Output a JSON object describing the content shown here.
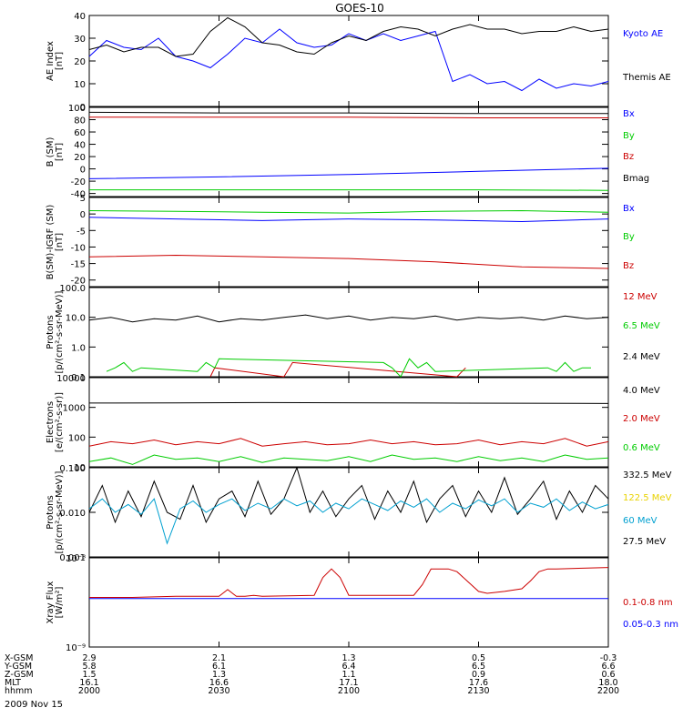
{
  "title": "GOES-10",
  "date": "2009 Nov 15",
  "colors": {
    "black": "#000000",
    "blue": "#0000ff",
    "red": "#cc0000",
    "green": "#00cc00",
    "yellow": "#e8d200",
    "cyan": "#00a0d0"
  },
  "chart_data": [
    {
      "type": "line",
      "ylabel": [
        "AE Index",
        "[nT]"
      ],
      "scale": "linear",
      "ylim": [
        0,
        40
      ],
      "ticks": [
        0,
        10,
        20,
        30,
        40
      ],
      "tick_labels": [
        "0",
        "10",
        "20",
        "30",
        "40"
      ],
      "xlim": [
        0,
        120
      ],
      "series": [
        {
          "name": "Kyoto AE",
          "color": "blue",
          "x": [
            0,
            4,
            8,
            12,
            16,
            20,
            24,
            28,
            32,
            36,
            40,
            44,
            48,
            52,
            56,
            60,
            64,
            68,
            72,
            76,
            80,
            84,
            88,
            92,
            96,
            100,
            104,
            108,
            112,
            116,
            120
          ],
          "values": [
            22,
            29,
            26,
            25,
            30,
            22,
            20,
            17,
            23,
            30,
            28,
            34,
            28,
            26,
            27,
            32,
            29,
            32,
            29,
            31,
            33,
            11,
            14,
            10,
            11,
            7,
            12,
            8,
            10,
            9,
            11
          ]
        },
        {
          "name": "Themis AE",
          "color": "black",
          "x": [
            0,
            4,
            8,
            12,
            16,
            20,
            24,
            28,
            32,
            36,
            40,
            44,
            48,
            52,
            56,
            60,
            64,
            68,
            72,
            76,
            80,
            84,
            88,
            92,
            96,
            100,
            104,
            108,
            112,
            116,
            120
          ],
          "values": [
            25,
            27,
            24,
            26,
            26,
            22,
            23,
            33,
            39,
            35,
            28,
            27,
            24,
            23,
            28,
            31,
            29,
            33,
            35,
            34,
            31,
            34,
            36,
            34,
            34,
            32,
            33,
            33,
            35,
            33,
            34
          ]
        }
      ]
    },
    {
      "type": "line",
      "ylabel": [
        "B (SM)",
        "[nT]"
      ],
      "scale": "linear",
      "ylim": [
        -45,
        100
      ],
      "ticks": [
        -40,
        -20,
        0,
        20,
        40,
        60,
        80,
        100
      ],
      "tick_labels": [
        "-40",
        "-20",
        "0",
        "20",
        "40",
        "60",
        "80",
        "100"
      ],
      "xlim": [
        0,
        120
      ],
      "series": [
        {
          "name": "Bx",
          "color": "blue",
          "x": [
            0,
            30,
            60,
            90,
            120
          ],
          "values": [
            -16,
            -13,
            -9,
            -4,
            1
          ]
        },
        {
          "name": "By",
          "color": "green",
          "x": [
            0,
            30,
            60,
            90,
            120
          ],
          "values": [
            -34,
            -34,
            -34,
            -34,
            -35
          ]
        },
        {
          "name": "Bz",
          "color": "red",
          "x": [
            0,
            30,
            60,
            90,
            120
          ],
          "values": [
            84,
            84,
            84,
            83,
            83
          ]
        },
        {
          "name": "Bmag",
          "color": "black",
          "x": [
            0,
            30,
            60,
            90,
            120
          ],
          "values": [
            92,
            91,
            91,
            90,
            90
          ]
        }
      ]
    },
    {
      "type": "line",
      "ylabel": [
        "B(SM)-IGRF (SM)",
        "[nT]"
      ],
      "scale": "linear",
      "ylim": [
        -22,
        5
      ],
      "ticks": [
        -20,
        -15,
        -10,
        -5,
        0,
        5
      ],
      "tick_labels": [
        "-20",
        "-15",
        "-10",
        "-5",
        "0",
        "5"
      ],
      "xlim": [
        0,
        120
      ],
      "series": [
        {
          "name": "Bx",
          "color": "blue",
          "x": [
            0,
            20,
            40,
            60,
            80,
            100,
            120
          ],
          "values": [
            -1,
            -1.5,
            -2,
            -1.5,
            -1.8,
            -2.3,
            -1.5
          ]
        },
        {
          "name": "By",
          "color": "green",
          "x": [
            0,
            20,
            40,
            60,
            80,
            100,
            120
          ],
          "values": [
            1,
            0.8,
            0.5,
            0.3,
            0.8,
            1,
            0.5
          ]
        },
        {
          "name": "Bz",
          "color": "red",
          "x": [
            0,
            20,
            40,
            60,
            80,
            100,
            120
          ],
          "values": [
            -13,
            -12.5,
            -13,
            -13.5,
            -14.5,
            -16,
            -16.5
          ]
        }
      ]
    },
    {
      "type": "line",
      "ylabel": [
        "Protons",
        "[p/(cm²-s-sr-MeV)]"
      ],
      "scale": "log",
      "ylim": [
        0.1,
        100
      ],
      "ticks": [
        0.1,
        1,
        10,
        100
      ],
      "tick_labels": [
        "0.1",
        "1.0",
        "10.0",
        "100.0"
      ],
      "xlim": [
        0,
        120
      ],
      "series": [
        {
          "name": "12 MeV",
          "color": "red",
          "x": [
            28,
            29,
            45,
            47,
            85,
            87
          ],
          "values": [
            0.1,
            0.2,
            0.1,
            0.3,
            0.1,
            0.2
          ]
        },
        {
          "name": "6.5 MeV",
          "color": "green",
          "x": [
            4,
            6,
            8,
            10,
            12,
            25,
            27,
            29,
            30,
            68,
            70,
            72,
            74,
            76,
            78,
            80,
            106,
            108,
            110,
            112,
            114,
            116
          ],
          "values": [
            0.15,
            0.2,
            0.3,
            0.15,
            0.2,
            0.15,
            0.3,
            0.2,
            0.4,
            0.3,
            0.2,
            0.1,
            0.4,
            0.2,
            0.3,
            0.15,
            0.2,
            0.15,
            0.3,
            0.15,
            0.2,
            0.2
          ]
        },
        {
          "name": "2.4 MeV",
          "color": "black",
          "x": [
            0,
            5,
            10,
            15,
            20,
            25,
            30,
            35,
            40,
            45,
            50,
            55,
            60,
            65,
            70,
            75,
            80,
            85,
            90,
            95,
            100,
            105,
            110,
            115,
            120
          ],
          "values": [
            8,
            10,
            7,
            9,
            8,
            11,
            7,
            9,
            8,
            10,
            12,
            9,
            11,
            8,
            10,
            9,
            11,
            8,
            10,
            9,
            10,
            8,
            11,
            9,
            10
          ]
        }
      ]
    },
    {
      "type": "line",
      "ylabel": [
        "Electrons",
        "[e/(cm²-s-sr)]"
      ],
      "scale": "log",
      "ylim": [
        10,
        10000
      ],
      "ticks": [
        10,
        100,
        1000,
        10000
      ],
      "tick_labels": [
        "10",
        "100",
        "1000",
        "10000"
      ],
      "xlim": [
        0,
        120
      ],
      "series": [
        {
          "name": "4.0 MeV",
          "color": "black",
          "x": [
            0,
            20,
            40,
            60,
            80,
            100,
            120
          ],
          "values": [
            1400,
            1420,
            1450,
            1430,
            1400,
            1380,
            1350
          ]
        },
        {
          "name": "2.0 MeV",
          "color": "red",
          "x": [
            0,
            5,
            10,
            15,
            20,
            25,
            30,
            35,
            40,
            45,
            50,
            55,
            60,
            65,
            70,
            75,
            80,
            85,
            90,
            95,
            100,
            105,
            110,
            115,
            120
          ],
          "values": [
            50,
            70,
            60,
            80,
            55,
            70,
            60,
            90,
            50,
            60,
            70,
            55,
            60,
            80,
            60,
            70,
            55,
            60,
            80,
            55,
            70,
            60,
            90,
            50,
            70
          ]
        },
        {
          "name": "0.6 MeV",
          "color": "green",
          "x": [
            0,
            5,
            10,
            15,
            20,
            25,
            30,
            35,
            40,
            45,
            50,
            55,
            60,
            65,
            70,
            75,
            80,
            85,
            90,
            95,
            100,
            105,
            110,
            115,
            120
          ],
          "values": [
            15,
            20,
            12,
            25,
            18,
            20,
            15,
            22,
            14,
            20,
            18,
            16,
            22,
            15,
            25,
            18,
            20,
            15,
            22,
            16,
            20,
            15,
            25,
            18,
            20
          ]
        }
      ]
    },
    {
      "type": "line",
      "ylabel": [
        "Protons",
        "[p/(cm²-s-sr-MeV)]"
      ],
      "scale": "log",
      "ylim": [
        0.001,
        0.1
      ],
      "ticks": [
        0.001,
        0.01,
        0.1
      ],
      "tick_labels": [
        "0.001",
        "0.010",
        "0.100"
      ],
      "xlim": [
        0,
        120
      ],
      "series": [
        {
          "name": "332.5 MeV",
          "color": "black",
          "x": [
            0,
            3,
            6,
            9,
            12,
            15,
            18,
            21,
            24,
            27,
            30,
            33,
            36,
            39,
            42,
            45,
            48,
            51,
            54,
            57,
            60,
            63,
            66,
            69,
            72,
            75,
            78,
            81,
            84,
            87,
            90,
            93,
            96,
            99,
            102,
            105,
            108,
            111,
            114,
            117,
            120
          ],
          "values": [
            0.01,
            0.04,
            0.006,
            0.03,
            0.008,
            0.05,
            0.01,
            0.007,
            0.04,
            0.006,
            0.02,
            0.03,
            0.008,
            0.05,
            0.009,
            0.02,
            0.1,
            0.01,
            0.03,
            0.008,
            0.02,
            0.04,
            0.007,
            0.03,
            0.01,
            0.05,
            0.006,
            0.02,
            0.04,
            0.008,
            0.03,
            0.01,
            0.06,
            0.009,
            0.02,
            0.05,
            0.007,
            0.03,
            0.01,
            0.04,
            0.02
          ]
        },
        {
          "name": "122.5 MeV",
          "color": "yellow",
          "x": [],
          "values": []
        },
        {
          "name": "60 MeV",
          "color": "cyan",
          "x": [
            0,
            3,
            6,
            9,
            12,
            15,
            18,
            21,
            24,
            27,
            30,
            33,
            36,
            39,
            42,
            45,
            48,
            51,
            54,
            57,
            60,
            63,
            66,
            69,
            72,
            75,
            78,
            81,
            84,
            87,
            90,
            93,
            96,
            99,
            102,
            105,
            108,
            111,
            114,
            117,
            120
          ],
          "values": [
            0.012,
            0.02,
            0.01,
            0.015,
            0.009,
            0.02,
            0.002,
            0.012,
            0.018,
            0.01,
            0.015,
            0.02,
            0.011,
            0.016,
            0.012,
            0.02,
            0.014,
            0.018,
            0.01,
            0.016,
            0.012,
            0.02,
            0.015,
            0.011,
            0.018,
            0.013,
            0.02,
            0.01,
            0.016,
            0.012,
            0.019,
            0.014,
            0.02,
            0.01,
            0.016,
            0.013,
            0.02,
            0.011,
            0.017,
            0.012,
            0.015
          ]
        },
        {
          "name": "27.5 MeV",
          "color": "black",
          "x": [],
          "values": []
        }
      ]
    },
    {
      "type": "line",
      "ylabel": [
        "Xray Flux",
        "[W/m²]"
      ],
      "scale": "log",
      "ylim": [
        1e-09,
        1e-08
      ],
      "ticks": [
        1e-09,
        1e-08
      ],
      "tick_labels": [
        "10⁻⁹",
        "10⁻⁸"
      ],
      "xlim": [
        0,
        120
      ],
      "series": [
        {
          "name": "0.1-0.8 nm",
          "color": "red",
          "x": [
            0,
            10,
            20,
            30,
            32,
            34,
            36,
            38,
            40,
            52,
            54,
            56,
            58,
            60,
            75,
            77,
            79,
            81,
            83,
            85,
            90,
            92,
            96,
            100,
            102,
            104,
            106,
            108,
            120
          ],
          "values": [
            3.6e-09,
            3.6e-09,
            3.7e-09,
            3.7e-09,
            4.4e-09,
            3.7e-09,
            3.7e-09,
            3.8e-09,
            3.7e-09,
            3.8e-09,
            6e-09,
            7.5e-09,
            6e-09,
            3.8e-09,
            3.8e-09,
            5e-09,
            7.5e-09,
            7.5e-09,
            7.5e-09,
            7e-09,
            4.2e-09,
            4e-09,
            4.2e-09,
            4.5e-09,
            5.5e-09,
            7e-09,
            7.5e-09,
            7.5e-09,
            7.8e-09
          ]
        },
        {
          "name": "0.05-0.3 nm",
          "color": "blue",
          "x": [
            0,
            30,
            60,
            90,
            120
          ],
          "values": [
            3.5e-09,
            3.5e-09,
            3.5e-09,
            3.5e-09,
            3.5e-09
          ]
        }
      ]
    }
  ],
  "ephemeris": {
    "rows": [
      {
        "label": "X-GSM",
        "values": [
          "2.9",
          "2.1",
          "1.3",
          "0.5",
          "-0.3"
        ]
      },
      {
        "label": "Y-GSM",
        "values": [
          "5.8",
          "6.1",
          "6.4",
          "6.5",
          "6.6"
        ]
      },
      {
        "label": "Z-GSM",
        "values": [
          "1.5",
          "1.3",
          "1.1",
          "0.9",
          "0.6"
        ]
      },
      {
        "label": "MLT",
        "values": [
          "16.1",
          "16.6",
          "17.1",
          "17.6",
          "18.0"
        ]
      },
      {
        "label": "hhmm",
        "values": [
          "2000",
          "2030",
          "2100",
          "2130",
          "2200"
        ]
      }
    ]
  }
}
